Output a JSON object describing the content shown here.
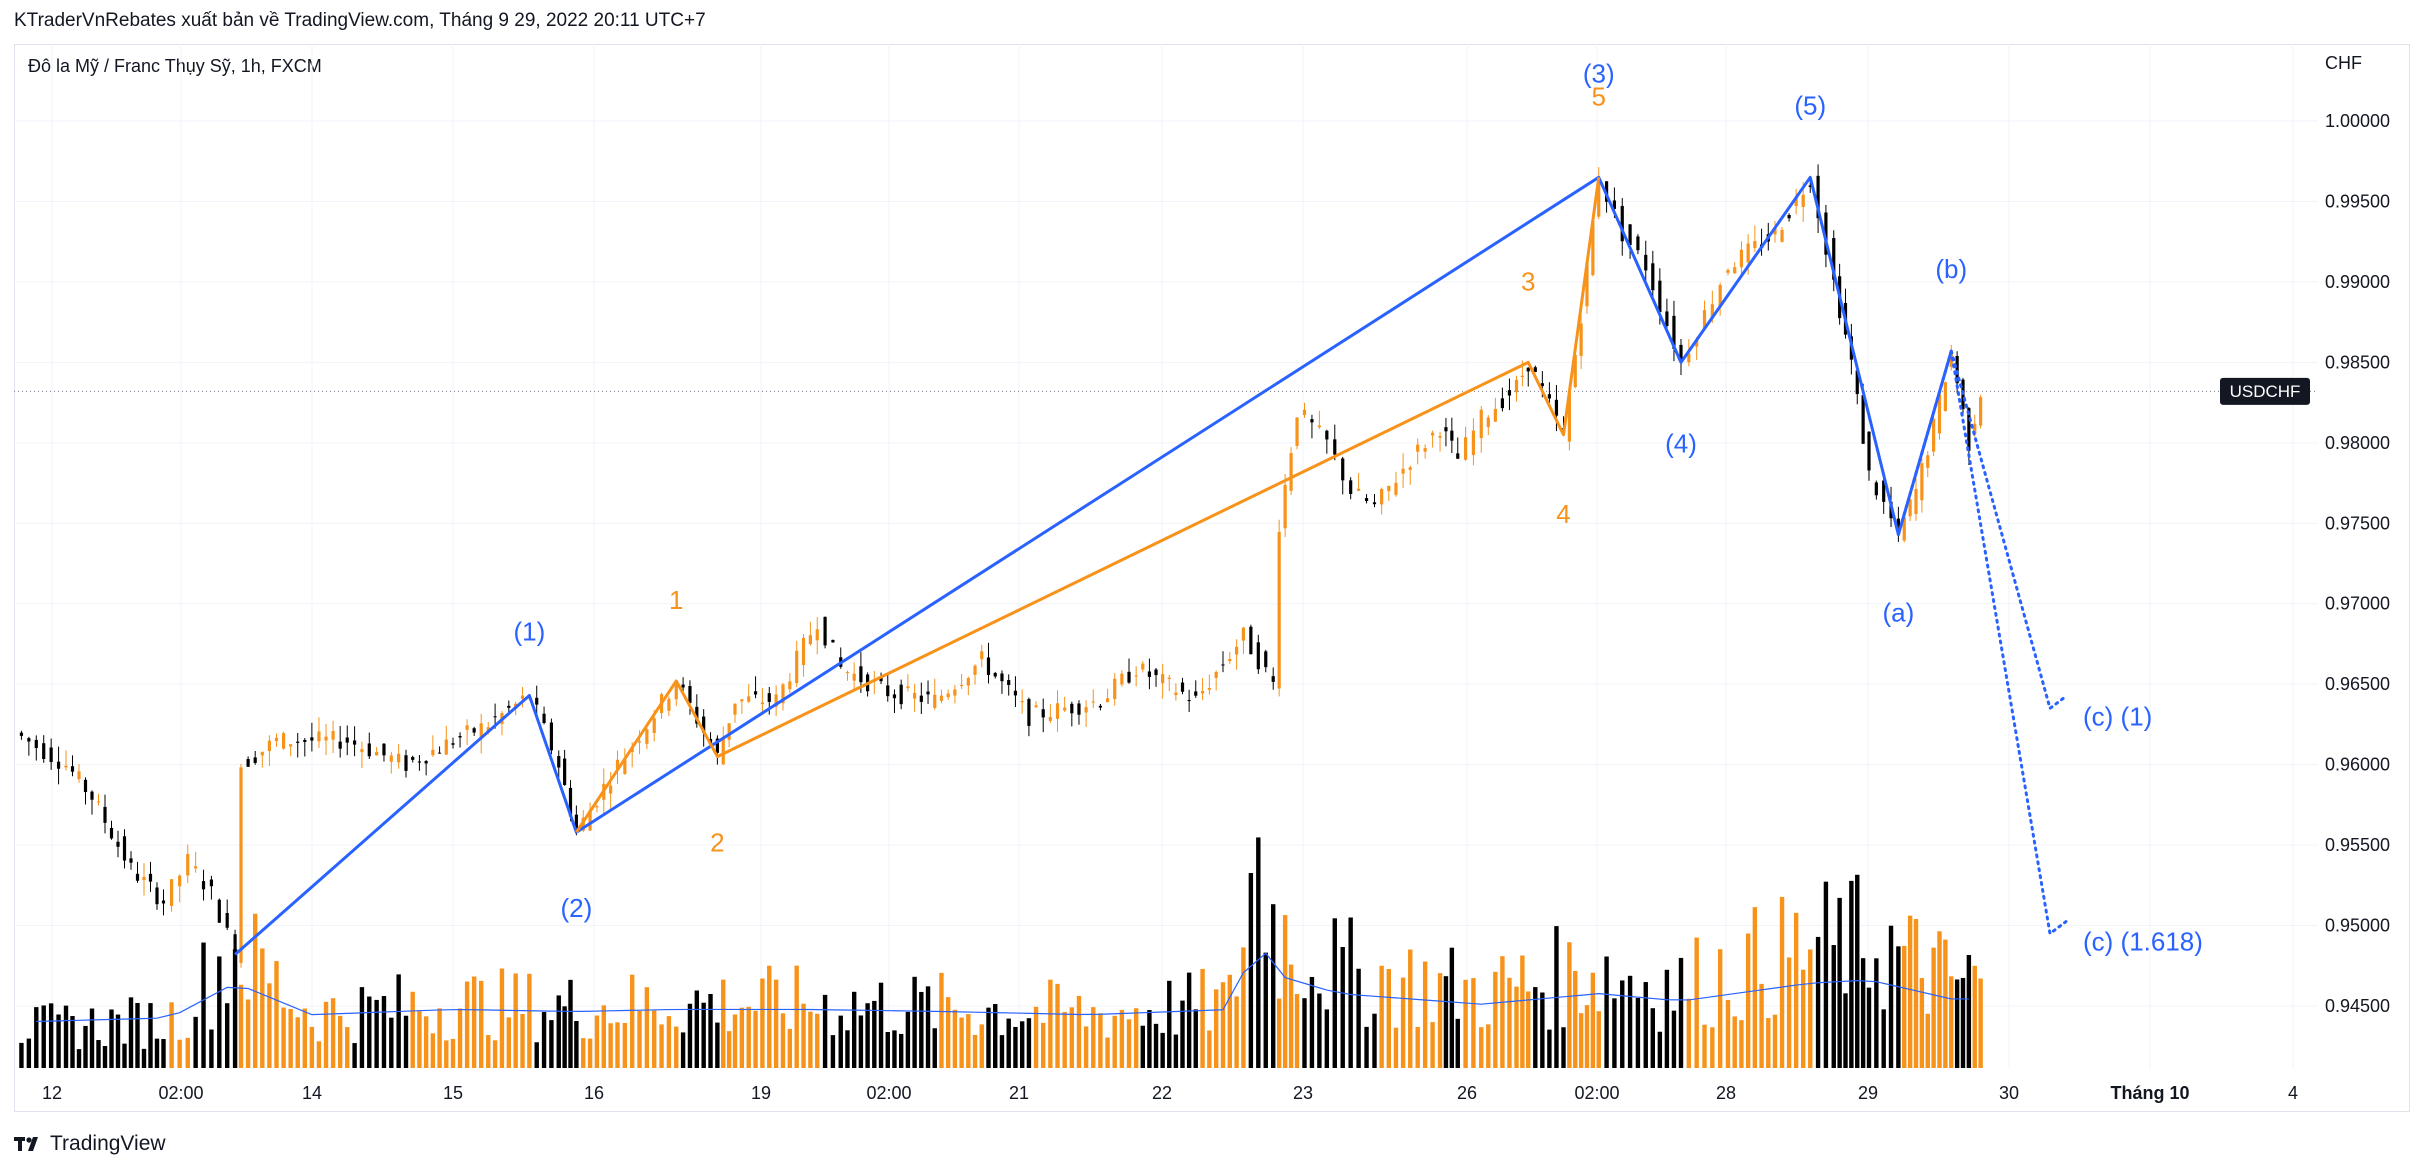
{
  "header": {
    "caption": "KTraderVnRebates xuất bản về TradingView.com, Tháng 9 29, 2022 20:11 UTC+7"
  },
  "chart": {
    "symbol_caption": "Đô la Mỹ / Franc Thụy Sỹ, 1h, FXCM",
    "currency_label": "CHF",
    "price_tag": "USDCHF"
  },
  "footer": {
    "brand": "TradingView",
    "logo_icon": "tradingview-logo-icon"
  },
  "colors": {
    "bullish": "#f7931a",
    "bearish": "#000000",
    "wave_blue": "#2962ff",
    "wave_orange": "#f7931a",
    "volume_ma": "#2962ff",
    "axis_text": "#131722"
  },
  "chart_data": {
    "type": "candlestick",
    "y_axis": {
      "position": "right",
      "ticks": [
        "1.00000",
        "0.99500",
        "0.99000",
        "0.98500",
        "0.98000",
        "0.97500",
        "0.97000",
        "0.96500",
        "0.96000",
        "0.95500",
        "0.95000",
        "0.94500"
      ],
      "ylim": [
        0.9415,
        1.0035
      ]
    },
    "x_axis": {
      "ticks": [
        "12",
        "02:00",
        "14",
        "15",
        "16",
        "19",
        "02:00",
        "21",
        "22",
        "23",
        "26",
        "02:00",
        "28",
        "29",
        "30",
        "Tháng 10",
        "4"
      ]
    },
    "current_price": 0.9832,
    "elliott_blue": {
      "points": [
        {
          "label": "",
          "t": "13 11:00",
          "price": 0.9482
        },
        {
          "label": "(1)",
          "t": "15 13:00",
          "price": 0.9643
        },
        {
          "label": "(2)",
          "t": "15 21:00",
          "price": 0.9558
        },
        {
          "label": "(3)",
          "t": "27 02:00",
          "price": 0.9965
        },
        {
          "label": "(4)",
          "t": "27 16:00",
          "price": 0.985
        },
        {
          "label": "(5)",
          "t": "28 14:00",
          "price": 0.9965
        },
        {
          "label": "(a)",
          "t": "29 05:00",
          "price": 0.9743
        },
        {
          "label": "(b)",
          "t": "29 14:00",
          "price": 0.9857
        }
      ]
    },
    "elliott_orange": {
      "points": [
        {
          "label": "",
          "t": "15 21:00",
          "price": 0.9558
        },
        {
          "label": "1",
          "t": "16 14:00",
          "price": 0.9652
        },
        {
          "label": "2",
          "t": "16 21:00",
          "price": 0.9605
        },
        {
          "label": "3",
          "t": "26 14:00",
          "price": 0.985
        },
        {
          "label": "4",
          "t": "26 20:00",
          "price": 0.9805
        },
        {
          "label": "5",
          "t": "27 02:00",
          "price": 0.9965
        }
      ]
    },
    "projections": [
      {
        "label": "(c) (1)",
        "from_price": 0.9857,
        "to_price": 0.9635
      },
      {
        "label": "(c) (1.618)",
        "from_price": 0.9857,
        "to_price": 0.9495
      }
    ],
    "price_path": [
      {
        "t": "12 00:00",
        "price": 0.962
      },
      {
        "t": "12 08:00",
        "price": 0.96
      },
      {
        "t": "12 12:00",
        "price": 0.958
      },
      {
        "t": "12 18:00",
        "price": 0.9535
      },
      {
        "t": "12 23:00",
        "price": 0.9515
      },
      {
        "t": "13 03:00",
        "price": 0.954
      },
      {
        "t": "13 07:00",
        "price": 0.952
      },
      {
        "t": "13 11:00",
        "price": 0.9482
      },
      {
        "t": "13 12:00",
        "price": 0.96
      },
      {
        "t": "13 18:00",
        "price": 0.9615
      },
      {
        "t": "14 06:00",
        "price": 0.9615
      },
      {
        "t": "14 16:00",
        "price": 0.96
      },
      {
        "t": "15 00:00",
        "price": 0.9615
      },
      {
        "t": "15 06:00",
        "price": 0.9625
      },
      {
        "t": "15 13:00",
        "price": 0.9643
      },
      {
        "t": "15 18:00",
        "price": 0.96
      },
      {
        "t": "15 21:00",
        "price": 0.9558
      },
      {
        "t": "16 04:00",
        "price": 0.96
      },
      {
        "t": "16 09:00",
        "price": 0.9625
      },
      {
        "t": "16 14:00",
        "price": 0.9652
      },
      {
        "t": "16 21:00",
        "price": 0.9605
      },
      {
        "t": "19 00:00",
        "price": 0.964
      },
      {
        "t": "19 07:00",
        "price": 0.964
      },
      {
        "t": "19 14:00",
        "price": 0.969
      },
      {
        "t": "19 18:00",
        "price": 0.966
      },
      {
        "t": "20 02:00",
        "price": 0.9645
      },
      {
        "t": "20 10:00",
        "price": 0.964
      },
      {
        "t": "20 18:00",
        "price": 0.9665
      },
      {
        "t": "21 02:00",
        "price": 0.963
      },
      {
        "t": "21 08:00",
        "price": 0.9635
      },
      {
        "t": "21 14:00",
        "price": 0.964
      },
      {
        "t": "21 20:00",
        "price": 0.966
      },
      {
        "t": "22 06:00",
        "price": 0.964
      },
      {
        "t": "22 14:00",
        "price": 0.968
      },
      {
        "t": "22 19:00",
        "price": 0.965
      },
      {
        "t": "22 20:00",
        "price": 0.975
      },
      {
        "t": "22 23:00",
        "price": 0.982
      },
      {
        "t": "23 04:00",
        "price": 0.98
      },
      {
        "t": "23 08:00",
        "price": 0.977
      },
      {
        "t": "23 12:00",
        "price": 0.976
      },
      {
        "t": "23 18:00",
        "price": 0.979
      },
      {
        "t": "23 23:00",
        "price": 0.981
      },
      {
        "t": "26 02:00",
        "price": 0.979
      },
      {
        "t": "26 06:00",
        "price": 0.9815
      },
      {
        "t": "26 12:00",
        "price": 0.9835
      },
      {
        "t": "26 14:00",
        "price": 0.985
      },
      {
        "t": "26 20:00",
        "price": 0.9805
      },
      {
        "t": "26 23:00",
        "price": 0.988
      },
      {
        "t": "27 02:00",
        "price": 0.9965
      },
      {
        "t": "27 06:00",
        "price": 0.993
      },
      {
        "t": "27 10:00",
        "price": 0.991
      },
      {
        "t": "27 16:00",
        "price": 0.985
      },
      {
        "t": "27 20:00",
        "price": 0.988
      },
      {
        "t": "28 00:00",
        "price": 0.991
      },
      {
        "t": "28 08:00",
        "price": 0.993
      },
      {
        "t": "28 14:00",
        "price": 0.9965
      },
      {
        "t": "28 18:00",
        "price": 0.99
      },
      {
        "t": "28 21:00",
        "price": 0.985
      },
      {
        "t": "29 00:00",
        "price": 0.978
      },
      {
        "t": "29 05:00",
        "price": 0.9743
      },
      {
        "t": "29 08:00",
        "price": 0.977
      },
      {
        "t": "29 11:00",
        "price": 0.981
      },
      {
        "t": "29 14:00",
        "price": 0.9857
      },
      {
        "t": "29 17:00",
        "price": 0.98
      },
      {
        "t": "29 19:00",
        "price": 0.9832
      }
    ],
    "volume": {
      "max_value": 1.0,
      "ma_level": 0.28,
      "profile": [
        {
          "t": "12 00:00",
          "v": 0.18
        },
        {
          "t": "13 00:00",
          "v": 0.22
        },
        {
          "t": "13 11:00",
          "v": 0.55
        },
        {
          "t": "14 00:00",
          "v": 0.25
        },
        {
          "t": "15 00:00",
          "v": 0.3
        },
        {
          "t": "15 21:00",
          "v": 0.28
        },
        {
          "t": "16 14:00",
          "v": 0.3
        },
        {
          "t": "19 12:00",
          "v": 0.3
        },
        {
          "t": "20 12:00",
          "v": 0.28
        },
        {
          "t": "21 12:00",
          "v": 0.25
        },
        {
          "t": "22 12:00",
          "v": 0.3
        },
        {
          "t": "22 16:00",
          "v": 1.0
        },
        {
          "t": "22 20:00",
          "v": 0.62
        },
        {
          "t": "23 06:00",
          "v": 0.45
        },
        {
          "t": "26 06:00",
          "v": 0.35
        },
        {
          "t": "27 02:00",
          "v": 0.45
        },
        {
          "t": "27 16:00",
          "v": 0.38
        },
        {
          "t": "28 14:00",
          "v": 0.55
        },
        {
          "t": "29 00:00",
          "v": 0.58
        },
        {
          "t": "29 14:00",
          "v": 0.4
        }
      ]
    }
  }
}
